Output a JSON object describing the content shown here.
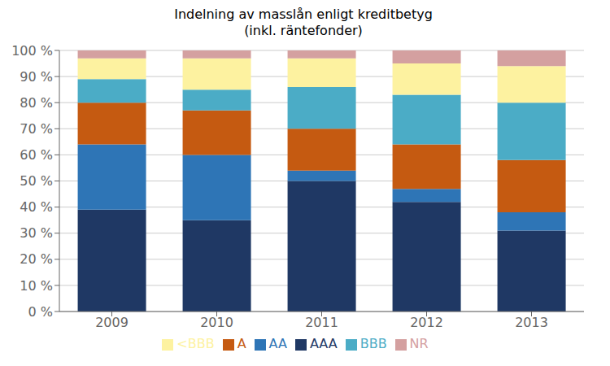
{
  "chart_data": {
    "type": "bar",
    "title": "Indelning av masslån enligt kreditbetyg\n(inkl. räntefonder)",
    "categories": [
      "2009",
      "2010",
      "2011",
      "2012",
      "2013"
    ],
    "series": [
      {
        "name": "AAA",
        "color": "#1f3864",
        "values": [
          39,
          35,
          50,
          42,
          31
        ]
      },
      {
        "name": "AA",
        "color": "#2e75b6",
        "values": [
          25,
          25,
          4,
          5,
          7
        ]
      },
      {
        "name": "A",
        "color": "#c55a11",
        "values": [
          16,
          17,
          16,
          17,
          20
        ]
      },
      {
        "name": "BBB",
        "color": "#4bacc6",
        "values": [
          9,
          8,
          16,
          19,
          22
        ]
      },
      {
        "name": "<BBB",
        "color": "#fdf2a0",
        "values": [
          8,
          12,
          11,
          12,
          14
        ]
      },
      {
        "name": "NR",
        "color": "#d4a0a0",
        "values": [
          3,
          3,
          3,
          5,
          6
        ]
      }
    ],
    "ylim": [
      0,
      100
    ],
    "yticks": [
      {
        "value": 0,
        "label": "0 %"
      },
      {
        "value": 10,
        "label": "10 %"
      },
      {
        "value": 20,
        "label": "20 %"
      },
      {
        "value": 30,
        "label": "30 %"
      },
      {
        "value": 40,
        "label": "40 %"
      },
      {
        "value": 50,
        "label": "50 %"
      },
      {
        "value": 60,
        "label": "60 %"
      },
      {
        "value": 70,
        "label": "70 %"
      },
      {
        "value": 80,
        "label": "80 %"
      },
      {
        "value": 90,
        "label": "90 %"
      },
      {
        "value": 100,
        "label": "100 %"
      }
    ],
    "grid": true,
    "stacked": true,
    "legend": "bottom"
  }
}
